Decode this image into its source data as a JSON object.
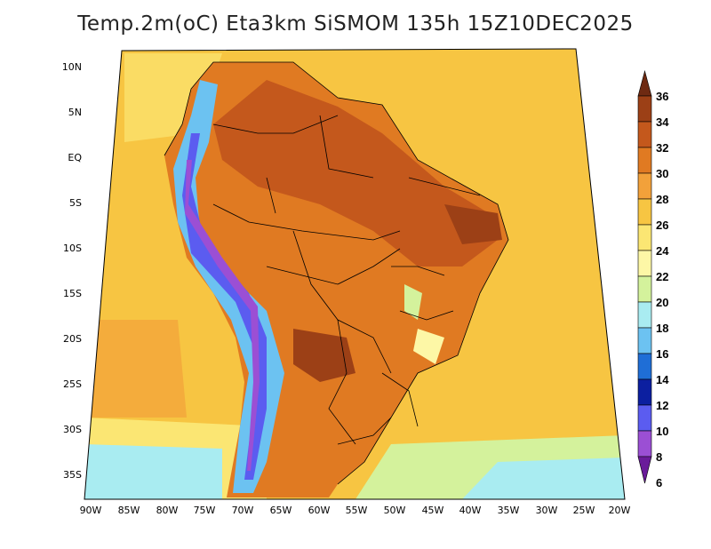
{
  "title": "Temp.2m(oC) Eta3km SiSMOM 135h 15Z10DEC2025",
  "map": {
    "lat_ticks": [
      "10N",
      "5N",
      "EQ",
      "5S",
      "10S",
      "15S",
      "20S",
      "25S",
      "30S",
      "35S"
    ],
    "lon_ticks": [
      "90W",
      "85W",
      "80W",
      "75W",
      "70W",
      "65W",
      "60W",
      "55W",
      "50W",
      "45W",
      "40W",
      "35W",
      "30W",
      "25W",
      "20W"
    ]
  },
  "colorbar": {
    "labels": [
      "36",
      "34",
      "32",
      "30",
      "28",
      "26",
      "24",
      "22",
      "20",
      "18",
      "16",
      "14",
      "12",
      "10",
      "8",
      "6"
    ],
    "colors": [
      "#6e2a12",
      "#9c4016",
      "#c4581c",
      "#e07a22",
      "#f2a13a",
      "#f7c542",
      "#fbe673",
      "#fdf7a6",
      "#d4f29c",
      "#a9ecf1",
      "#6cc2f1",
      "#1f6ed6",
      "#0c1fa0",
      "#5b5cf0",
      "#9b4fd4",
      "#6a1b9a"
    ]
  }
}
